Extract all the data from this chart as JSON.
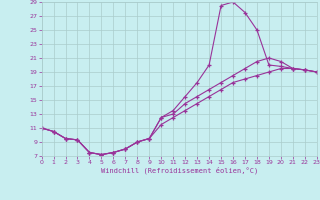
{
  "background_color": "#c8eef0",
  "line_color": "#993399",
  "grid_color": "#aacccc",
  "xlabel": "Windchill (Refroidissement éolien,°C)",
  "xlim": [
    0,
    23
  ],
  "ylim": [
    7,
    29
  ],
  "xticks": [
    0,
    1,
    2,
    3,
    4,
    5,
    6,
    7,
    8,
    9,
    10,
    11,
    12,
    13,
    14,
    15,
    16,
    17,
    18,
    19,
    20,
    21,
    22,
    23
  ],
  "yticks": [
    7,
    9,
    11,
    13,
    15,
    17,
    19,
    21,
    23,
    25,
    27,
    29
  ],
  "c1x": [
    0,
    1,
    2,
    3,
    4,
    5,
    6,
    7,
    8,
    9,
    10,
    11,
    12,
    13,
    14,
    15,
    16,
    17,
    18,
    19,
    20,
    21,
    22,
    23
  ],
  "c1y": [
    11,
    10.5,
    9.5,
    9.3,
    7.5,
    7.2,
    7.5,
    8.0,
    9.0,
    9.5,
    12.5,
    13.5,
    15.5,
    17.5,
    20.0,
    28.5,
    29.0,
    27.5,
    25.0,
    20.0,
    19.8,
    19.5,
    19.3,
    19.0
  ],
  "c2x": [
    0,
    1,
    2,
    3,
    4,
    5,
    6,
    7,
    8,
    9,
    10,
    11,
    12,
    13,
    14,
    15,
    16,
    17,
    18,
    19,
    20,
    21,
    22,
    23
  ],
  "c2y": [
    11,
    10.5,
    9.5,
    9.3,
    7.5,
    7.2,
    7.5,
    8.0,
    9.0,
    9.5,
    12.5,
    13.0,
    14.5,
    15.5,
    16.5,
    17.5,
    18.5,
    19.5,
    20.5,
    21.0,
    20.5,
    19.5,
    19.3,
    19.0
  ],
  "c3x": [
    0,
    1,
    2,
    3,
    4,
    5,
    6,
    7,
    8,
    9,
    10,
    11,
    12,
    13,
    14,
    15,
    16,
    17,
    18,
    19,
    20,
    21,
    22,
    23
  ],
  "c3y": [
    11,
    10.5,
    9.5,
    9.3,
    7.5,
    7.2,
    7.5,
    8.0,
    9.0,
    9.5,
    11.5,
    12.5,
    13.5,
    14.5,
    15.5,
    16.5,
    17.5,
    18.0,
    18.5,
    19.0,
    19.5,
    19.5,
    19.3,
    19.0
  ]
}
